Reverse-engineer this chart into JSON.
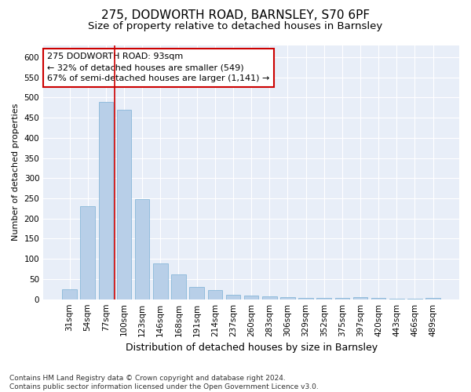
{
  "title1": "275, DODWORTH ROAD, BARNSLEY, S70 6PF",
  "title2": "Size of property relative to detached houses in Barnsley",
  "xlabel": "Distribution of detached houses by size in Barnsley",
  "ylabel": "Number of detached properties",
  "categories": [
    "31sqm",
    "54sqm",
    "77sqm",
    "100sqm",
    "123sqm",
    "146sqm",
    "168sqm",
    "191sqm",
    "214sqm",
    "237sqm",
    "260sqm",
    "283sqm",
    "306sqm",
    "329sqm",
    "352sqm",
    "375sqm",
    "397sqm",
    "420sqm",
    "443sqm",
    "466sqm",
    "489sqm"
  ],
  "values": [
    25,
    230,
    490,
    470,
    248,
    88,
    62,
    30,
    22,
    12,
    10,
    8,
    5,
    4,
    3,
    3,
    6,
    3,
    1,
    1,
    4
  ],
  "bar_color": "#b8cfe8",
  "bar_edge_color": "#7aafd4",
  "bar_width": 0.8,
  "vline_x": 2.5,
  "vline_color": "#cc0000",
  "annotation_text": "275 DODWORTH ROAD: 93sqm\n← 32% of detached houses are smaller (549)\n67% of semi-detached houses are larger (1,141) →",
  "annotation_box_color": "#ffffff",
  "annotation_box_edge": "#cc0000",
  "ylim": [
    0,
    630
  ],
  "yticks": [
    0,
    50,
    100,
    150,
    200,
    250,
    300,
    350,
    400,
    450,
    500,
    550,
    600
  ],
  "footnote": "Contains HM Land Registry data © Crown copyright and database right 2024.\nContains public sector information licensed under the Open Government Licence v3.0.",
  "fig_bg_color": "#ffffff",
  "plot_bg_color": "#e8eef8",
  "grid_color": "#ffffff",
  "title1_fontsize": 11,
  "title2_fontsize": 9.5,
  "xlabel_fontsize": 9,
  "ylabel_fontsize": 8,
  "tick_fontsize": 7.5,
  "annot_fontsize": 8,
  "footnote_fontsize": 6.5
}
